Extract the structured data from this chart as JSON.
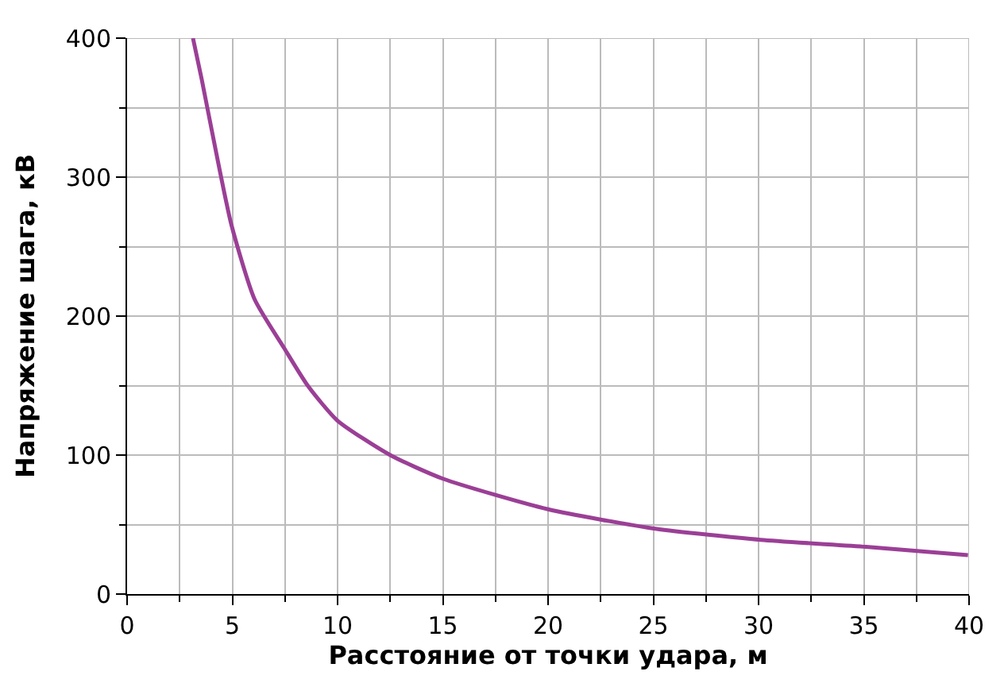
{
  "chart_data": {
    "type": "line",
    "xlabel": "Расстояние от точки удара, м",
    "ylabel": "Напряжение шага, кВ",
    "x": [
      3.13,
      3.55,
      4.11,
      4.95,
      6.06,
      7.46,
      8.58,
      9.98,
      12.5,
      15.0,
      20.0,
      25.1,
      30.1,
      35.1,
      39.95
    ],
    "series": [
      {
        "color": "#9b3f96",
        "values": [
          400,
          370,
          327,
          266,
          212,
          177,
          150,
          125,
          100,
          83,
          61,
          47,
          39,
          34,
          28
        ]
      }
    ],
    "xlim": [
      0,
      40
    ],
    "ylim": [
      0,
      400
    ],
    "xticks": [
      0,
      5,
      10,
      15,
      20,
      25,
      30,
      35,
      40
    ],
    "yticks": [
      0,
      100,
      200,
      300,
      400
    ],
    "grid": true,
    "marker": "none",
    "line_style": "solid"
  }
}
